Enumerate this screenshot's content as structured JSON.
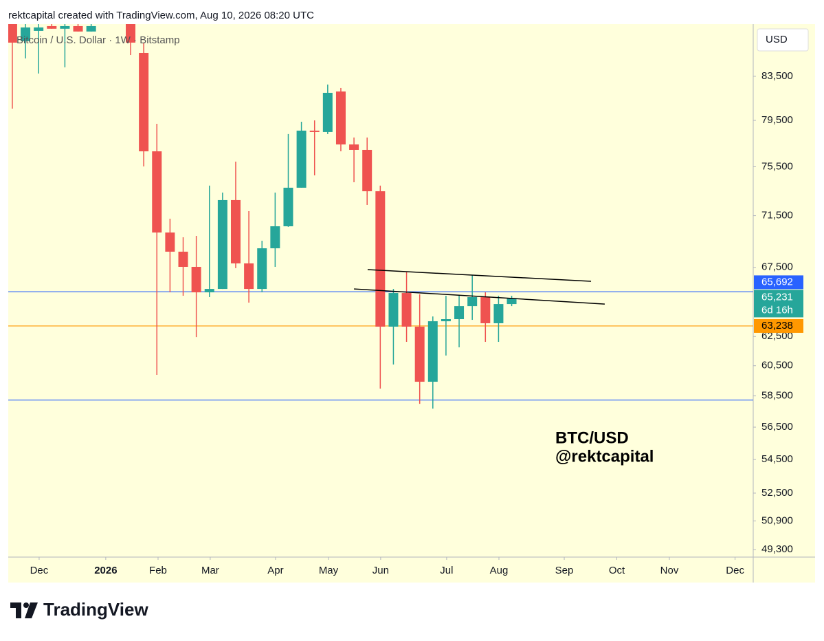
{
  "header": "rektcapital created with TradingView.com, Aug 10, 2026 08:20 UTC",
  "chart_data": {
    "type": "candlestick",
    "legend_text": "Bitcoin / U.S. Dollar · 1W · Bitstamp",
    "currency": "USD",
    "log_scale": true,
    "up_color": "#26a69a",
    "down_color": "#ef5350",
    "open": [
      88500,
      86830,
      87830,
      88300,
      88040,
      88300,
      87770,
      null,
      null,
      88500,
      85700,
      76810,
      70170,
      68690,
      67540,
      65650,
      65900,
      72750,
      67800,
      65900,
      68950,
      70660,
      73760,
      78600,
      78480,
      82100,
      77400,
      76930,
      73470,
      63190,
      65600,
      63190,
      59430,
      63570,
      63720,
      64650,
      65300,
      63430,
      64800
    ],
    "high": [
      88500,
      88500,
      88500,
      88500,
      88500,
      88500,
      88500,
      null,
      null,
      88500,
      86690,
      79200,
      71260,
      69800,
      69910,
      73930,
      73360,
      75930,
      71860,
      69530,
      73360,
      78300,
      79380,
      79500,
      82740,
      82420,
      78000,
      78000,
      73930,
      65900,
      67130,
      65500,
      63910,
      65400,
      65400,
      66920,
      65650,
      65400,
      65400
    ],
    "low": [
      80550,
      85180,
      83760,
      88040,
      84340,
      87770,
      87770,
      null,
      null,
      85500,
      75530,
      59890,
      65650,
      65400,
      62460,
      65300,
      65900,
      67440,
      64900,
      65650,
      67540,
      70610,
      73760,
      74780,
      78300,
      76810,
      74210,
      72360,
      58980,
      60580,
      62130,
      57990,
      57680,
      61190,
      61750,
      63670,
      62130,
      62130,
      64650
    ],
    "close": [
      86690,
      88170,
      88170,
      88040,
      88300,
      87770,
      88300,
      null,
      null,
      86690,
      76810,
      70170,
      68690,
      67540,
      65650,
      65900,
      72750,
      67800,
      65900,
      68950,
      70660,
      73760,
      78600,
      78480,
      81980,
      77400,
      76930,
      73470,
      63190,
      65600,
      63190,
      59430,
      63570,
      63720,
      64650,
      65300,
      63430,
      64800,
      65231
    ],
    "xlim": [
      -0.31,
      56.38
    ],
    "xticks": [
      {
        "value": 2.04,
        "label": "Dec"
      },
      {
        "value": 7.11,
        "label": "2026",
        "bold": true
      },
      {
        "value": 11.09,
        "label": "Feb"
      },
      {
        "value": 15.06,
        "label": "Mar"
      },
      {
        "value": 20.03,
        "label": "Apr"
      },
      {
        "value": 24.06,
        "label": "May"
      },
      {
        "value": 28.03,
        "label": "Jun"
      },
      {
        "value": 33.05,
        "label": "Jul"
      },
      {
        "value": 37.03,
        "label": "Aug"
      },
      {
        "value": 42.0,
        "label": "Sep"
      },
      {
        "value": 46.0,
        "label": "Oct"
      },
      {
        "value": 50.0,
        "label": "Nov"
      },
      {
        "value": 55.0,
        "label": "Dec"
      }
    ],
    "ylim": [
      48890,
      88500
    ],
    "yticks": [
      {
        "value": 83500,
        "label": "83,500"
      },
      {
        "value": 79500,
        "label": "79,500"
      },
      {
        "value": 75500,
        "label": "75,500"
      },
      {
        "value": 71500,
        "label": "71,500"
      },
      {
        "value": 67500,
        "label": "67,500"
      },
      {
        "value": 62500,
        "label": "62,500"
      },
      {
        "value": 60500,
        "label": "60,500"
      },
      {
        "value": 58500,
        "label": "58,500"
      },
      {
        "value": 56500,
        "label": "56,500"
      },
      {
        "value": 54500,
        "label": "54,500"
      },
      {
        "value": 52500,
        "label": "52,500"
      },
      {
        "value": 50900,
        "label": "50,900"
      },
      {
        "value": 49300,
        "label": "49,300"
      }
    ],
    "price_lines": [
      {
        "value": 65692,
        "label": "65,692",
        "color": "#2962ff"
      },
      {
        "value": 63238,
        "label": "63,238",
        "color": "#ff9800"
      },
      {
        "value": 58230,
        "color": "#2962ff"
      }
    ],
    "last_price": {
      "value": 65231,
      "label": "65,231",
      "countdown": "6d 16h"
    },
    "trendlines": [
      {
        "x": [
          27.04,
          44.04
        ],
        "y": [
          67330,
          66460
        ]
      },
      {
        "x": [
          26.0,
          45.08
        ],
        "y": [
          65900,
          64800
        ]
      }
    ],
    "annotations": [
      "BTC/USD",
      "@rektcapital"
    ]
  },
  "footer": "TradingView"
}
